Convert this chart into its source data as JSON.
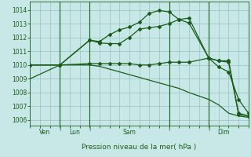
{
  "bg_color": "#c8e8e8",
  "grid_color": "#a0c8c8",
  "line_color": "#1a5c1a",
  "xlabel": "Pression niveau de la mer( hPa )",
  "ylabel_values": [
    1006,
    1007,
    1008,
    1009,
    1010,
    1011,
    1012,
    1013,
    1014
  ],
  "ylim": [
    1005.6,
    1014.6
  ],
  "xlim": [
    0,
    22
  ],
  "vlines_x": [
    3,
    6,
    14,
    18
  ],
  "day_labels": [
    {
      "x": 1.5,
      "label": "Ven"
    },
    {
      "x": 4.5,
      "label": "Lun"
    },
    {
      "x": 10.0,
      "label": "Sam"
    },
    {
      "x": 19.5,
      "label": "Dim"
    }
  ],
  "series": [
    {
      "x": [
        0,
        3,
        6,
        7,
        8,
        9,
        10,
        11,
        12,
        13,
        14,
        15,
        16,
        18,
        19,
        20,
        21,
        22
      ],
      "y": [
        1009.0,
        1010.0,
        1010.0,
        1009.9,
        1009.7,
        1009.5,
        1009.3,
        1009.1,
        1008.9,
        1008.7,
        1008.5,
        1008.3,
        1008.0,
        1007.5,
        1007.1,
        1006.5,
        1006.3,
        1006.2
      ],
      "markers": false
    },
    {
      "x": [
        0,
        3,
        6,
        7,
        8,
        9,
        10,
        11,
        12,
        13,
        14,
        15,
        16,
        18,
        19,
        20,
        21,
        22
      ],
      "y": [
        1010.0,
        1010.0,
        1010.1,
        1010.1,
        1010.1,
        1010.1,
        1010.1,
        1010.0,
        1010.0,
        1010.1,
        1010.2,
        1010.2,
        1010.2,
        1010.5,
        1010.3,
        1010.2,
        1006.4,
        1006.3
      ],
      "markers": true
    },
    {
      "x": [
        0,
        3,
        6,
        7,
        8,
        9,
        10,
        11,
        12,
        13,
        14,
        15,
        16,
        18,
        19,
        20,
        21,
        22
      ],
      "y": [
        1010.0,
        1010.0,
        1011.8,
        1011.6,
        1011.55,
        1011.55,
        1012.0,
        1012.6,
        1012.7,
        1012.8,
        1013.0,
        1013.3,
        1013.4,
        1010.5,
        1010.3,
        1010.3,
        1006.5,
        1006.3
      ],
      "markers": true
    },
    {
      "x": [
        0,
        3,
        6,
        7,
        8,
        9,
        10,
        11,
        12,
        13,
        14,
        15,
        16,
        18,
        19,
        20,
        21,
        22
      ],
      "y": [
        1010.0,
        1010.0,
        1011.8,
        1011.7,
        1012.2,
        1012.55,
        1012.75,
        1013.1,
        1013.75,
        1013.95,
        1013.85,
        1013.3,
        1013.05,
        1010.5,
        1009.85,
        1009.5,
        1007.5,
        1006.5
      ],
      "markers": true
    }
  ]
}
